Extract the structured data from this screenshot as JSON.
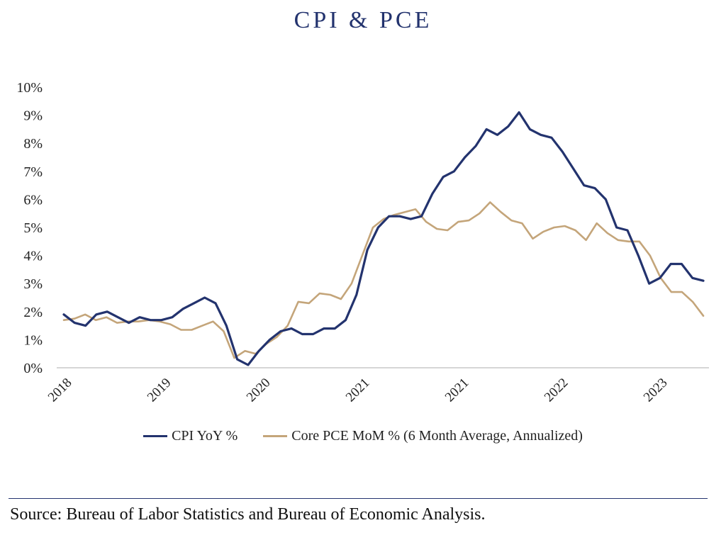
{
  "title": "CPI & PCE",
  "source": "Source: Bureau of Labor Statistics and Bureau of Economic Analysis.",
  "colors": {
    "cpi": "#23336e",
    "pce": "#c4a57a",
    "axis": "#c8c8c8"
  },
  "chart_data": {
    "type": "line",
    "title": "CPI & PCE",
    "xlabel": "",
    "ylabel": "",
    "ylim": [
      0,
      10
    ],
    "y_ticks": [
      "0%",
      "1%",
      "2%",
      "3%",
      "4%",
      "5%",
      "6%",
      "7%",
      "8%",
      "9%",
      "10%"
    ],
    "x_tick_labels": [
      "2018",
      "2019",
      "2020",
      "2021",
      "2021",
      "2022",
      "2023"
    ],
    "grid": false,
    "legend_position": "bottom",
    "series": [
      {
        "name": "CPI YoY %",
        "values": [
          1.9,
          1.6,
          1.5,
          1.9,
          2.0,
          1.8,
          1.6,
          1.8,
          1.7,
          1.7,
          1.8,
          2.1,
          2.3,
          2.5,
          2.3,
          1.5,
          0.3,
          0.1,
          0.6,
          1.0,
          1.3,
          1.4,
          1.2,
          1.2,
          1.4,
          1.4,
          1.7,
          2.6,
          4.2,
          5.0,
          5.4,
          5.4,
          5.3,
          5.4,
          6.2,
          6.8,
          7.0,
          7.5,
          7.9,
          8.5,
          8.3,
          8.6,
          9.1,
          8.5,
          8.3,
          8.2,
          7.7,
          7.1,
          6.5,
          6.4,
          6.0,
          5.0,
          4.9,
          4.0,
          3.0,
          3.2,
          3.7,
          3.7,
          3.2,
          3.1
        ]
      },
      {
        "name": "Core PCE MoM % (6 Month Average, Annualized)",
        "values": [
          1.7,
          1.75,
          1.9,
          1.7,
          1.8,
          1.6,
          1.65,
          1.65,
          1.7,
          1.65,
          1.55,
          1.35,
          1.35,
          1.5,
          1.65,
          1.3,
          0.35,
          0.6,
          0.5,
          0.85,
          1.1,
          1.5,
          2.35,
          2.3,
          2.65,
          2.6,
          2.45,
          3.0,
          4.0,
          5.0,
          5.3,
          5.45,
          5.55,
          5.65,
          5.2,
          4.95,
          4.9,
          5.2,
          5.25,
          5.5,
          5.9,
          5.55,
          5.25,
          5.15,
          4.6,
          4.85,
          5.0,
          5.05,
          4.9,
          4.55,
          5.15,
          4.8,
          4.55,
          4.5,
          4.5,
          4.0,
          3.2,
          2.7,
          2.7,
          2.35,
          1.85
        ]
      }
    ]
  }
}
